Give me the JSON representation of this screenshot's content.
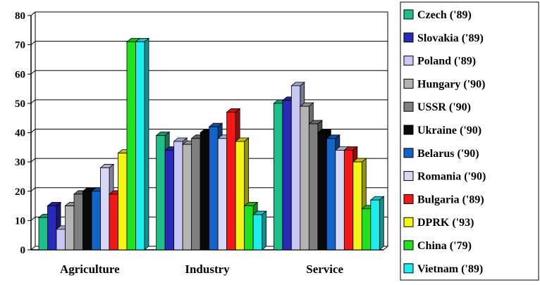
{
  "chart_data": {
    "type": "bar",
    "title": "",
    "xlabel": "",
    "ylabel": "",
    "ylim": [
      0,
      80
    ],
    "yticks": [
      "0",
      "10",
      "20",
      "30",
      "40",
      "50",
      "60",
      "70",
      "80"
    ],
    "grid": true,
    "legend_position": "right",
    "style": "3d-clustered-columns",
    "categories": [
      "Agriculture",
      "Industry",
      "Service"
    ],
    "series": [
      {
        "name": "Czech ('89)",
        "color": "#1dbf8a",
        "values": [
          11,
          39,
          50
        ]
      },
      {
        "name": "Slovakia ('89)",
        "color": "#2a2ab8",
        "values": [
          15,
          34,
          51
        ]
      },
      {
        "name": "Poland ('89)",
        "color": "#c8c8f4",
        "values": [
          7,
          37,
          56
        ]
      },
      {
        "name": "Hungary ('90)",
        "color": "#b4b4b4",
        "values": [
          15,
          36,
          49
        ]
      },
      {
        "name": "USSR ('90)",
        "color": "#7f7f7f",
        "values": [
          19,
          38,
          43
        ]
      },
      {
        "name": "Ukraine ('90)",
        "color": "#0a0a0a",
        "values": [
          20,
          40,
          40
        ]
      },
      {
        "name": "Belarus ('90)",
        "color": "#1464c8",
        "values": [
          20,
          42,
          38
        ]
      },
      {
        "name": "Romania ('90)",
        "color": "#d8d8f6",
        "values": [
          28,
          38,
          34
        ]
      },
      {
        "name": "Bulgaria ('89)",
        "color": "#f01818",
        "values": [
          19,
          47,
          34
        ]
      },
      {
        "name": "DPRK ('93)",
        "color": "#f4f414",
        "values": [
          33,
          37,
          30
        ]
      },
      {
        "name": "China ('79)",
        "color": "#20e020",
        "values": [
          71,
          15,
          14
        ]
      },
      {
        "name": "Vietnam ('89)",
        "color": "#20eeee",
        "values": [
          71,
          12,
          17
        ]
      }
    ]
  }
}
